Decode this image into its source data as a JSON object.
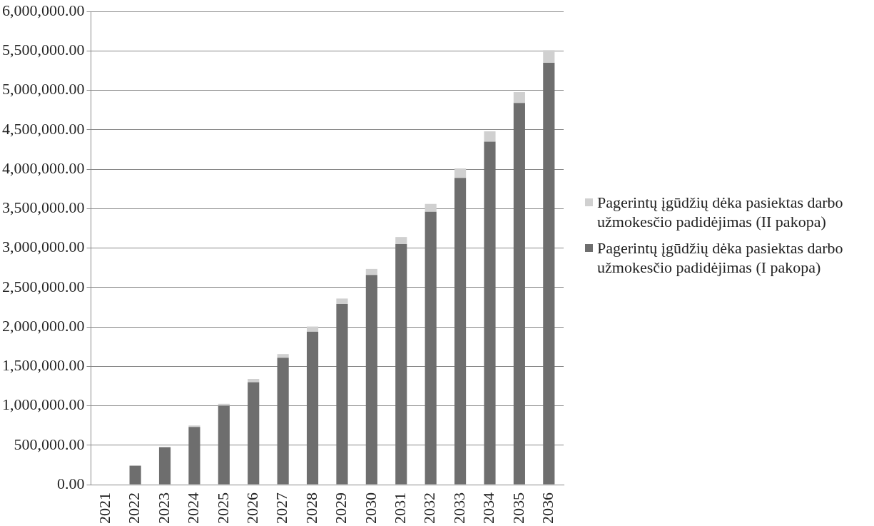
{
  "chart_data": {
    "type": "bar",
    "stacked": true,
    "grid": "y",
    "legend": "right",
    "categories": [
      "2021",
      "2022",
      "2023",
      "2024",
      "2025",
      "2026",
      "2027",
      "2028",
      "2029",
      "2030",
      "2031",
      "2032",
      "2033",
      "2034",
      "2035",
      "2036"
    ],
    "series": [
      {
        "name": "Pagerintų įgūdžių dėka pasiektas darbo užmokesčio padidėjimas (I pakopa)",
        "color": "#6e6e6e",
        "values": [
          0,
          240000,
          475000,
          730000,
          1000000,
          1300000,
          1610000,
          1940000,
          2290000,
          2660000,
          3050000,
          3460000,
          3890000,
          4350000,
          4840000,
          5350000
        ]
      },
      {
        "name": "Pagerintų įgūdžių dėka pasiektas darbo užmokesčio padidėjimas (II pakopa)",
        "color": "#d0d0d0",
        "values": [
          0,
          0,
          0,
          20000,
          25000,
          40000,
          45000,
          65000,
          70000,
          75000,
          90000,
          100000,
          120000,
          130000,
          140000,
          160000
        ]
      }
    ],
    "ylim": [
      0,
      6000000
    ],
    "yticks": [
      {
        "value": 0,
        "label": "0.00"
      },
      {
        "value": 500000,
        "label": "500,000.00"
      },
      {
        "value": 1000000,
        "label": "1,000,000.00"
      },
      {
        "value": 1500000,
        "label": "1,500,000.00"
      },
      {
        "value": 2000000,
        "label": "2,000,000.00"
      },
      {
        "value": 2500000,
        "label": "2,500,000.00"
      },
      {
        "value": 3000000,
        "label": "3,000,000.00"
      },
      {
        "value": 3500000,
        "label": "3,500,000.00"
      },
      {
        "value": 4000000,
        "label": "4,000,000.00"
      },
      {
        "value": 4500000,
        "label": "4,500,000.00"
      },
      {
        "value": 5000000,
        "label": "5,000,000.00"
      },
      {
        "value": 5500000,
        "label": "5,500,000.00"
      },
      {
        "value": 6000000,
        "label": "6,000,000.00"
      }
    ]
  }
}
